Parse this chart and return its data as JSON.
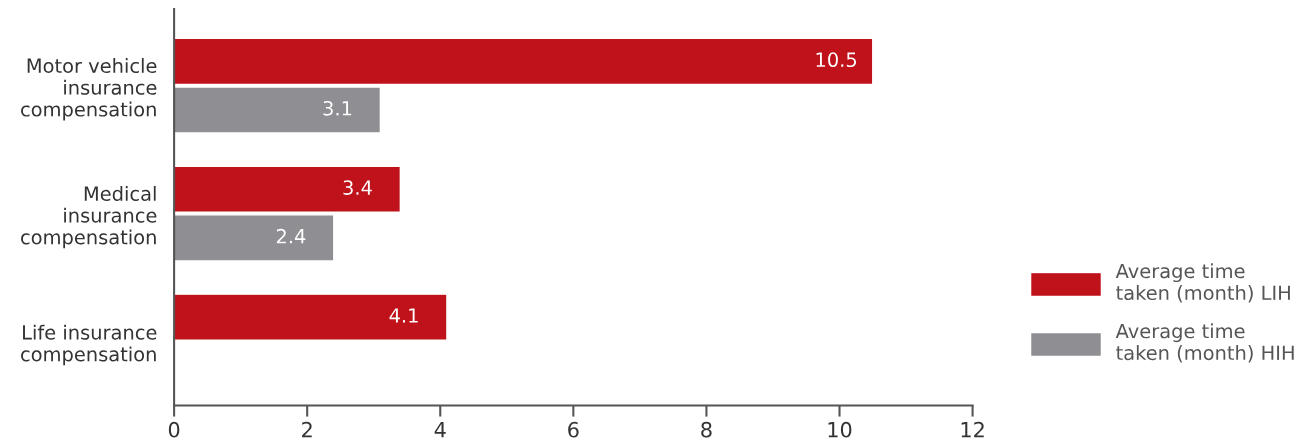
{
  "chart_data": {
    "type": "bar",
    "orientation": "horizontal",
    "categories": [
      "Motor vehicle\ninsurance\ncompensation",
      "Medical\ninsurance\ncompensation",
      "Life insurance\ncompensation"
    ],
    "series": [
      {
        "name": "Average time\ntaken (month) LIH",
        "color": "#c0121b",
        "values": [
          10.5,
          3.4,
          4.1
        ]
      },
      {
        "name": "Average time\ntaken (month) HIH",
        "color": "#8e8e93",
        "values": [
          3.1,
          2.4,
          null
        ]
      }
    ],
    "xlim": [
      0,
      12
    ],
    "xticks": [
      0,
      2,
      4,
      6,
      8,
      10,
      12
    ],
    "data_labels": true,
    "grid": false,
    "legend": "right"
  }
}
